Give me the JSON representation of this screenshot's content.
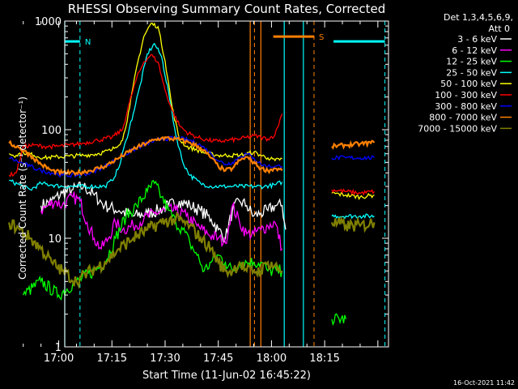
{
  "chart_data": {
    "type": "line",
    "title": "RHESSI Observing Summary Count Rates, Corrected",
    "xlabel": "Start Time (11-Jun-02 16:45:22)",
    "ylabel": "Corrected Count Rate (s⁻¹ detector⁻¹)",
    "ylim": [
      1,
      1000
    ],
    "yscale": "log",
    "xlim_minutes": [
      16.7,
      108.0
    ],
    "x_unit": "minutes after 16:45:22",
    "xtick_labels": [
      "17:00",
      "17:15",
      "17:30",
      "17:45",
      "18:00",
      "18:15"
    ],
    "xtick_minutes": [
      15.0,
      30.0,
      45.0,
      60.0,
      75.0,
      90.0
    ],
    "ytick_labels": [
      "1",
      "10",
      "100",
      "1000"
    ],
    "ytick_values": [
      1,
      10,
      100,
      1000
    ],
    "legend": {
      "position": "top-right-outside",
      "header": [
        "Det 1,3,4,5,6,9,",
        "Att 0"
      ]
    },
    "timestamp": "16-Oct-2021 11:42",
    "series": [
      {
        "name": "3 - 6 keV",
        "color": "#ffffff",
        "points": [
          [
            1,
            null
          ],
          [
            5,
            null
          ],
          [
            10,
            20
          ],
          [
            13,
            22
          ],
          [
            16,
            26
          ],
          [
            19,
            28
          ],
          [
            22,
            30
          ],
          [
            25,
            25
          ],
          [
            28,
            20
          ],
          [
            32,
            18
          ],
          [
            36,
            16
          ],
          [
            40,
            17
          ],
          [
            43,
            18
          ],
          [
            46,
            20
          ],
          [
            49,
            22
          ],
          [
            52,
            20
          ],
          [
            55,
            18
          ],
          [
            58,
            15
          ],
          [
            60,
            12
          ],
          [
            62,
            10
          ],
          [
            64,
            18
          ],
          [
            66,
            22
          ],
          [
            68,
            20
          ],
          [
            70,
            16
          ],
          [
            72,
            17
          ],
          [
            74,
            18
          ],
          [
            76,
            20
          ],
          [
            78,
            20
          ],
          [
            79,
            12
          ]
        ],
        "gaps": [
          [
            [
              78.5,
              90.5
            ]
          ],
          []
        ]
      },
      {
        "name": "6 - 12 keV",
        "color": "#ff00ff",
        "points": [
          [
            10,
            18
          ],
          [
            12,
            20
          ],
          [
            14,
            22
          ],
          [
            16,
            20
          ],
          [
            19,
            24
          ],
          [
            21,
            22
          ],
          [
            23,
            14
          ],
          [
            25,
            10
          ],
          [
            27,
            8
          ],
          [
            29,
            10
          ],
          [
            31,
            14
          ],
          [
            33,
            12
          ],
          [
            36,
            13
          ],
          [
            39,
            15
          ],
          [
            42,
            17
          ],
          [
            45,
            18
          ],
          [
            48,
            18
          ],
          [
            51,
            16
          ],
          [
            54,
            13
          ],
          [
            57,
            11
          ],
          [
            60,
            10
          ],
          [
            62,
            9
          ],
          [
            64,
            20
          ],
          [
            66,
            14
          ],
          [
            68,
            11
          ],
          [
            70,
            11
          ],
          [
            72,
            12
          ],
          [
            74,
            13
          ],
          [
            76,
            14
          ],
          [
            78,
            8
          ]
        ]
      },
      {
        "name": "12 - 25 keV",
        "color": "#00ff00",
        "points": [
          [
            1,
            null
          ],
          [
            5,
            3
          ],
          [
            10,
            4
          ],
          [
            15,
            3
          ],
          [
            20,
            4
          ],
          [
            25,
            5
          ],
          [
            28,
            6
          ],
          [
            31,
            10
          ],
          [
            34,
            16
          ],
          [
            37,
            20
          ],
          [
            40,
            27
          ],
          [
            42,
            32
          ],
          [
            44,
            24
          ],
          [
            46,
            18
          ],
          [
            48,
            14
          ],
          [
            50,
            12
          ],
          [
            52,
            9
          ],
          [
            54,
            7
          ],
          [
            56,
            5
          ],
          [
            58,
            6
          ],
          [
            60,
            7
          ],
          [
            62,
            6
          ],
          [
            64,
            5
          ],
          [
            66,
            6
          ],
          [
            68,
            6
          ],
          [
            70,
            6
          ],
          [
            72,
            6
          ],
          [
            74,
            5
          ],
          [
            78,
            5
          ],
          [
            92,
            1.8
          ],
          [
            96,
            1.8
          ]
        ]
      },
      {
        "name": "25 - 50 keV",
        "color": "#00ffff",
        "points": [
          [
            1,
            34
          ],
          [
            4,
            31
          ],
          [
            7,
            28
          ],
          [
            10,
            32
          ],
          [
            13,
            31
          ],
          [
            16,
            30
          ],
          [
            20,
            30
          ],
          [
            24,
            30
          ],
          [
            28,
            30
          ],
          [
            30,
            34
          ],
          [
            32,
            45
          ],
          [
            34,
            80
          ],
          [
            36,
            140
          ],
          [
            38,
            260
          ],
          [
            40,
            500
          ],
          [
            42,
            620
          ],
          [
            44,
            470
          ],
          [
            46,
            220
          ],
          [
            48,
            90
          ],
          [
            50,
            50
          ],
          [
            52,
            38
          ],
          [
            55,
            32
          ],
          [
            58,
            30
          ],
          [
            61,
            30
          ],
          [
            64,
            30
          ],
          [
            67,
            30
          ],
          [
            70,
            30
          ],
          [
            73,
            30
          ],
          [
            76,
            31
          ],
          [
            78,
            33
          ],
          [
            92,
            16
          ],
          [
            96,
            16
          ],
          [
            100,
            16
          ],
          [
            104,
            16
          ]
        ]
      },
      {
        "name": "50 - 100 keV",
        "color": "#ffff00",
        "points": [
          [
            1,
            60
          ],
          [
            3,
            58
          ],
          [
            5,
            62
          ],
          [
            8,
            58
          ],
          [
            11,
            55
          ],
          [
            14,
            56
          ],
          [
            18,
            57
          ],
          [
            22,
            58
          ],
          [
            26,
            60
          ],
          [
            30,
            65
          ],
          [
            33,
            80
          ],
          [
            35,
            160
          ],
          [
            37,
            380
          ],
          [
            39,
            720
          ],
          [
            41,
            950
          ],
          [
            43,
            890
          ],
          [
            45,
            430
          ],
          [
            47,
            160
          ],
          [
            49,
            82
          ],
          [
            51,
            70
          ],
          [
            54,
            65
          ],
          [
            57,
            60
          ],
          [
            60,
            58
          ],
          [
            63,
            58
          ],
          [
            66,
            58
          ],
          [
            68,
            60
          ],
          [
            70,
            62
          ],
          [
            72,
            58
          ],
          [
            74,
            55
          ],
          [
            76,
            52
          ],
          [
            78,
            54
          ],
          [
            92,
            26
          ],
          [
            96,
            25
          ],
          [
            100,
            24
          ],
          [
            104,
            25
          ]
        ]
      },
      {
        "name": "100 - 300 keV",
        "color": "#ff0000",
        "points": [
          [
            1,
            38
          ],
          [
            3,
            40
          ],
          [
            5,
            70
          ],
          [
            8,
            72
          ],
          [
            11,
            70
          ],
          [
            14,
            70
          ],
          [
            18,
            72
          ],
          [
            22,
            75
          ],
          [
            26,
            80
          ],
          [
            30,
            85
          ],
          [
            33,
            100
          ],
          [
            35,
            180
          ],
          [
            37,
            300
          ],
          [
            39,
            420
          ],
          [
            41,
            490
          ],
          [
            43,
            420
          ],
          [
            45,
            230
          ],
          [
            47,
            150
          ],
          [
            49,
            110
          ],
          [
            51,
            95
          ],
          [
            54,
            85
          ],
          [
            57,
            80
          ],
          [
            60,
            78
          ],
          [
            63,
            80
          ],
          [
            66,
            82
          ],
          [
            68,
            85
          ],
          [
            70,
            88
          ],
          [
            72,
            85
          ],
          [
            74,
            82
          ],
          [
            76,
            90
          ],
          [
            78,
            140
          ],
          [
            92,
            28
          ],
          [
            96,
            27
          ],
          [
            100,
            26
          ],
          [
            104,
            27
          ]
        ]
      },
      {
        "name": "300 - 800 keV",
        "color": "#0000ff",
        "points": [
          [
            1,
            55
          ],
          [
            4,
            50
          ],
          [
            7,
            46
          ],
          [
            10,
            42
          ],
          [
            13,
            40
          ],
          [
            16,
            38
          ],
          [
            20,
            38
          ],
          [
            24,
            40
          ],
          [
            28,
            46
          ],
          [
            32,
            55
          ],
          [
            36,
            65
          ],
          [
            40,
            75
          ],
          [
            44,
            82
          ],
          [
            48,
            84
          ],
          [
            52,
            80
          ],
          [
            55,
            72
          ],
          [
            58,
            60
          ],
          [
            60,
            52
          ],
          [
            62,
            48
          ],
          [
            64,
            50
          ],
          [
            66,
            56
          ],
          [
            68,
            60
          ],
          [
            70,
            55
          ],
          [
            72,
            48
          ],
          [
            74,
            46
          ],
          [
            76,
            46
          ],
          [
            78,
            46
          ],
          [
            92,
            55
          ],
          [
            96,
            55
          ],
          [
            100,
            55
          ],
          [
            104,
            55
          ]
        ]
      },
      {
        "name": "800 - 7000 keV",
        "color": "#ff8000",
        "points": [
          [
            1,
            75
          ],
          [
            4,
            68
          ],
          [
            7,
            58
          ],
          [
            10,
            48
          ],
          [
            13,
            42
          ],
          [
            16,
            40
          ],
          [
            20,
            40
          ],
          [
            24,
            42
          ],
          [
            28,
            46
          ],
          [
            32,
            55
          ],
          [
            36,
            66
          ],
          [
            40,
            76
          ],
          [
            44,
            84
          ],
          [
            48,
            82
          ],
          [
            52,
            76
          ],
          [
            55,
            68
          ],
          [
            58,
            55
          ],
          [
            60,
            46
          ],
          [
            62,
            42
          ],
          [
            64,
            44
          ],
          [
            66,
            52
          ],
          [
            68,
            56
          ],
          [
            70,
            50
          ],
          [
            72,
            44
          ],
          [
            74,
            42
          ],
          [
            76,
            44
          ],
          [
            78,
            42
          ],
          [
            92,
            70
          ],
          [
            96,
            72
          ],
          [
            100,
            74
          ],
          [
            104,
            76
          ]
        ]
      },
      {
        "name": "7000 - 15000 keV",
        "color": "#808000",
        "points": [
          [
            1,
            14
          ],
          [
            4,
            12
          ],
          [
            7,
            10
          ],
          [
            10,
            8
          ],
          [
            13,
            6
          ],
          [
            16,
            5
          ],
          [
            20,
            4
          ],
          [
            24,
            5
          ],
          [
            28,
            6
          ],
          [
            32,
            8
          ],
          [
            36,
            10
          ],
          [
            40,
            12
          ],
          [
            44,
            14
          ],
          [
            48,
            15
          ],
          [
            52,
            13
          ],
          [
            55,
            10
          ],
          [
            58,
            8
          ],
          [
            60,
            6
          ],
          [
            62,
            5
          ],
          [
            64,
            5
          ],
          [
            66,
            6
          ],
          [
            68,
            5
          ],
          [
            70,
            5
          ],
          [
            72,
            5
          ],
          [
            74,
            6
          ],
          [
            78,
            5
          ],
          [
            92,
            14
          ],
          [
            96,
            13
          ],
          [
            100,
            13
          ],
          [
            104,
            14
          ]
        ]
      }
    ],
    "flags": [
      {
        "label": "N",
        "color": "#00ffff",
        "start": 0,
        "end": 21.0,
        "level": 650,
        "dashed_at": [
          21.0
        ]
      },
      {
        "label": "S",
        "color": "#ff8000",
        "start": 75.5,
        "end": 87.0,
        "level": 720,
        "dashed_at": [
          70.0,
          87.0
        ]
      }
    ],
    "vlines_solid": [
      {
        "color": "#00ffff",
        "at": [
          0.5,
          78.6,
          84.0
        ]
      },
      {
        "color": "#ff8000",
        "at": [
          69.0,
          72.0
        ]
      }
    ],
    "vlines_dashed": [
      {
        "color": "#00ffff",
        "at": [
          21.0,
          107.0
        ]
      },
      {
        "color": "#ff8000",
        "at": [
          70.2,
          87.0
        ]
      }
    ]
  }
}
